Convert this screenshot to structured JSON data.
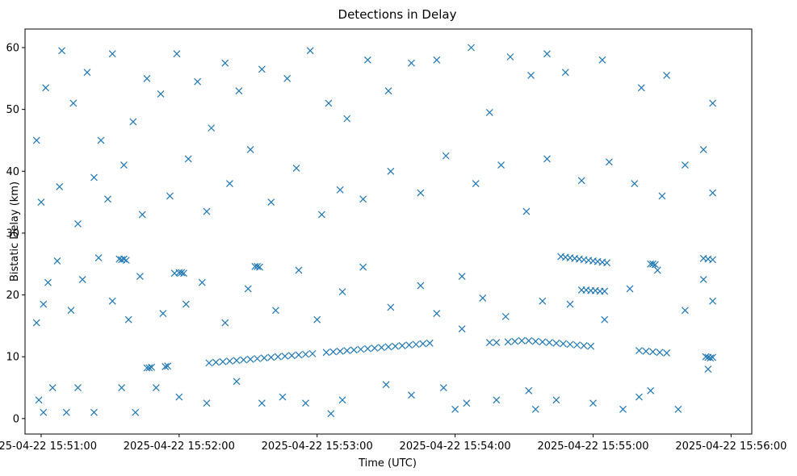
{
  "chart_data": {
    "type": "scatter",
    "title": "Detections in Delay",
    "xlabel": "Time (UTC)",
    "ylabel": "Bistatic Delay (km)",
    "x_ticks": [
      "2025-04-22 15:51:00",
      "2025-04-22 15:52:00",
      "2025-04-22 15:53:00",
      "2025-04-22 15:54:00",
      "2025-04-22 15:55:00",
      "2025-04-22 15:56:00"
    ],
    "y_ticks": [
      0,
      10,
      20,
      30,
      40,
      50,
      60
    ],
    "xlim": [
      "2025-04-22 15:50:53",
      "2025-04-22 15:56:09"
    ],
    "ylim": [
      -2.5,
      63
    ],
    "grid": false,
    "marker": "x",
    "color": "#1f77b4",
    "series": [
      {
        "points": [
          [
            "2025-04-22 15:50:59",
            3.0
          ],
          [
            "2025-04-22 15:51:01",
            1.0
          ],
          [
            "2025-04-22 15:51:05",
            5.0
          ],
          [
            "2025-04-22 15:51:11",
            1.0
          ],
          [
            "2025-04-22 15:51:16",
            5.0
          ],
          [
            "2025-04-22 15:51:23",
            1.0
          ],
          [
            "2025-04-22 15:51:35",
            5.0
          ],
          [
            "2025-04-22 15:51:41",
            1.0
          ],
          [
            "2025-04-22 15:51:50",
            5.0
          ],
          [
            "2025-04-22 15:52:00",
            3.5
          ],
          [
            "2025-04-22 15:52:12",
            2.5
          ],
          [
            "2025-04-22 15:52:25",
            6.0
          ],
          [
            "2025-04-22 15:52:36",
            2.5
          ],
          [
            "2025-04-22 15:52:45",
            3.5
          ],
          [
            "2025-04-22 15:52:55",
            2.5
          ],
          [
            "2025-04-22 15:53:06",
            0.8
          ],
          [
            "2025-04-22 15:53:11",
            3.0
          ],
          [
            "2025-04-22 15:53:30",
            5.5
          ],
          [
            "2025-04-22 15:53:41",
            3.8
          ],
          [
            "2025-04-22 15:53:55",
            5.0
          ],
          [
            "2025-04-22 15:54:00",
            1.5
          ],
          [
            "2025-04-22 15:54:05",
            2.5
          ],
          [
            "2025-04-22 15:54:18",
            3.0
          ],
          [
            "2025-04-22 15:54:32",
            4.5
          ],
          [
            "2025-04-22 15:54:35",
            1.5
          ],
          [
            "2025-04-22 15:54:44",
            3.0
          ],
          [
            "2025-04-22 15:55:00",
            2.5
          ],
          [
            "2025-04-22 15:55:13",
            1.5
          ],
          [
            "2025-04-22 15:55:20",
            3.5
          ],
          [
            "2025-04-22 15:55:25",
            4.5
          ],
          [
            "2025-04-22 15:55:37",
            1.5
          ],
          [
            "2025-04-22 15:55:50",
            8.0
          ],
          [
            "2025-04-22 15:50:58",
            15.5
          ],
          [
            "2025-04-22 15:51:01",
            18.5
          ],
          [
            "2025-04-22 15:51:03",
            22.0
          ],
          [
            "2025-04-22 15:51:07",
            25.5
          ],
          [
            "2025-04-22 15:51:13",
            17.5
          ],
          [
            "2025-04-22 15:51:18",
            22.5
          ],
          [
            "2025-04-22 15:51:25",
            26.0
          ],
          [
            "2025-04-22 15:51:31",
            19.0
          ],
          [
            "2025-04-22 15:51:38",
            16.0
          ],
          [
            "2025-04-22 15:51:43",
            23.0
          ],
          [
            "2025-04-22 15:51:53",
            17.0
          ],
          [
            "2025-04-22 15:51:58",
            23.5
          ],
          [
            "2025-04-22 15:52:03",
            18.5
          ],
          [
            "2025-04-22 15:52:10",
            22.0
          ],
          [
            "2025-04-22 15:52:20",
            15.5
          ],
          [
            "2025-04-22 15:52:30",
            21.0
          ],
          [
            "2025-04-22 15:52:42",
            17.5
          ],
          [
            "2025-04-22 15:52:52",
            24.0
          ],
          [
            "2025-04-22 15:53:00",
            16.0
          ],
          [
            "2025-04-22 15:53:11",
            20.5
          ],
          [
            "2025-04-22 15:53:20",
            24.5
          ],
          [
            "2025-04-22 15:53:32",
            18.0
          ],
          [
            "2025-04-22 15:53:45",
            21.5
          ],
          [
            "2025-04-22 15:53:52",
            17.0
          ],
          [
            "2025-04-22 15:54:03",
            23.0
          ],
          [
            "2025-04-22 15:54:12",
            19.5
          ],
          [
            "2025-04-22 15:54:22",
            16.5
          ],
          [
            "2025-04-22 15:54:38",
            19.0
          ],
          [
            "2025-04-22 15:54:50",
            18.5
          ],
          [
            "2025-04-22 15:55:05",
            16.0
          ],
          [
            "2025-04-22 15:55:16",
            21.0
          ],
          [
            "2025-04-22 15:55:28",
            24.0
          ],
          [
            "2025-04-22 15:55:40",
            17.5
          ],
          [
            "2025-04-22 15:55:48",
            22.5
          ],
          [
            "2025-04-22 15:55:52",
            19.0
          ],
          [
            "2025-04-22 15:50:58",
            45.0
          ],
          [
            "2025-04-22 15:51:02",
            53.5
          ],
          [
            "2025-04-22 15:51:09",
            59.5
          ],
          [
            "2025-04-22 15:51:14",
            51.0
          ],
          [
            "2025-04-22 15:51:20",
            56.0
          ],
          [
            "2025-04-22 15:51:26",
            45.0
          ],
          [
            "2025-04-22 15:51:31",
            59.0
          ],
          [
            "2025-04-22 15:51:40",
            48.0
          ],
          [
            "2025-04-22 15:51:46",
            55.0
          ],
          [
            "2025-04-22 15:51:52",
            52.5
          ],
          [
            "2025-04-22 15:51:59",
            59.0
          ],
          [
            "2025-04-22 15:52:08",
            54.5
          ],
          [
            "2025-04-22 15:52:14",
            47.0
          ],
          [
            "2025-04-22 15:52:20",
            57.5
          ],
          [
            "2025-04-22 15:52:26",
            53.0
          ],
          [
            "2025-04-22 15:52:36",
            56.5
          ],
          [
            "2025-04-22 15:52:47",
            55.0
          ],
          [
            "2025-04-22 15:52:57",
            59.5
          ],
          [
            "2025-04-22 15:53:05",
            51.0
          ],
          [
            "2025-04-22 15:53:13",
            48.5
          ],
          [
            "2025-04-22 15:53:22",
            58.0
          ],
          [
            "2025-04-22 15:53:31",
            53.0
          ],
          [
            "2025-04-22 15:53:41",
            57.5
          ],
          [
            "2025-04-22 15:53:52",
            58.0
          ],
          [
            "2025-04-22 15:54:07",
            60.0
          ],
          [
            "2025-04-22 15:54:15",
            49.5
          ],
          [
            "2025-04-22 15:54:24",
            58.5
          ],
          [
            "2025-04-22 15:54:33",
            55.5
          ],
          [
            "2025-04-22 15:54:40",
            59.0
          ],
          [
            "2025-04-22 15:54:48",
            56.0
          ],
          [
            "2025-04-22 15:55:04",
            58.0
          ],
          [
            "2025-04-22 15:55:21",
            53.5
          ],
          [
            "2025-04-22 15:55:32",
            55.5
          ],
          [
            "2025-04-22 15:55:48",
            43.5
          ],
          [
            "2025-04-22 15:55:52",
            51.0
          ],
          [
            "2025-04-22 15:51:00",
            35.0
          ],
          [
            "2025-04-22 15:51:08",
            37.5
          ],
          [
            "2025-04-22 15:51:16",
            31.5
          ],
          [
            "2025-04-22 15:51:23",
            39.0
          ],
          [
            "2025-04-22 15:51:29",
            35.5
          ],
          [
            "2025-04-22 15:51:36",
            41.0
          ],
          [
            "2025-04-22 15:51:44",
            33.0
          ],
          [
            "2025-04-22 15:51:56",
            36.0
          ],
          [
            "2025-04-22 15:52:04",
            42.0
          ],
          [
            "2025-04-22 15:52:12",
            33.5
          ],
          [
            "2025-04-22 15:52:22",
            38.0
          ],
          [
            "2025-04-22 15:52:31",
            43.5
          ],
          [
            "2025-04-22 15:52:40",
            35.0
          ],
          [
            "2025-04-22 15:52:51",
            40.5
          ],
          [
            "2025-04-22 15:53:02",
            33.0
          ],
          [
            "2025-04-22 15:53:10",
            37.0
          ],
          [
            "2025-04-22 15:53:20",
            35.5
          ],
          [
            "2025-04-22 15:53:32",
            40.0
          ],
          [
            "2025-04-22 15:53:45",
            36.5
          ],
          [
            "2025-04-22 15:53:56",
            42.5
          ],
          [
            "2025-04-22 15:54:09",
            38.0
          ],
          [
            "2025-04-22 15:54:20",
            41.0
          ],
          [
            "2025-04-22 15:54:31",
            33.5
          ],
          [
            "2025-04-22 15:54:40",
            42.0
          ],
          [
            "2025-04-22 15:54:55",
            38.5
          ],
          [
            "2025-04-22 15:55:07",
            41.5
          ],
          [
            "2025-04-22 15:55:18",
            38.0
          ],
          [
            "2025-04-22 15:55:30",
            36.0
          ],
          [
            "2025-04-22 15:55:40",
            41.0
          ],
          [
            "2025-04-22 15:55:52",
            36.5
          ],
          [
            "2025-04-22 15:51:34",
            25.8
          ],
          [
            "2025-04-22 15:51:35",
            25.7
          ],
          [
            "2025-04-22 15:51:36",
            25.8
          ],
          [
            "2025-04-22 15:51:37",
            25.6
          ],
          [
            "2025-04-22 15:52:00",
            23.6
          ],
          [
            "2025-04-22 15:52:01",
            23.6
          ],
          [
            "2025-04-22 15:52:02",
            23.5
          ],
          [
            "2025-04-22 15:52:33",
            24.6
          ],
          [
            "2025-04-22 15:52:34",
            24.6
          ],
          [
            "2025-04-22 15:52:35",
            24.5
          ],
          [
            "2025-04-22 15:54:46",
            26.2
          ],
          [
            "2025-04-22 15:54:48",
            26.1
          ],
          [
            "2025-04-22 15:54:50",
            26.0
          ],
          [
            "2025-04-22 15:54:52",
            25.9
          ],
          [
            "2025-04-22 15:54:54",
            25.8
          ],
          [
            "2025-04-22 15:54:56",
            25.7
          ],
          [
            "2025-04-22 15:54:58",
            25.6
          ],
          [
            "2025-04-22 15:55:00",
            25.5
          ],
          [
            "2025-04-22 15:55:02",
            25.4
          ],
          [
            "2025-04-22 15:55:04",
            25.3
          ],
          [
            "2025-04-22 15:55:06",
            25.2
          ],
          [
            "2025-04-22 15:55:25",
            25.0
          ],
          [
            "2025-04-22 15:55:26",
            25.0
          ],
          [
            "2025-04-22 15:55:27",
            24.9
          ],
          [
            "2025-04-22 15:55:48",
            25.9
          ],
          [
            "2025-04-22 15:55:50",
            25.8
          ],
          [
            "2025-04-22 15:55:52",
            25.7
          ],
          [
            "2025-04-22 15:54:55",
            20.8
          ],
          [
            "2025-04-22 15:54:57",
            20.8
          ],
          [
            "2025-04-22 15:54:59",
            20.7
          ],
          [
            "2025-04-22 15:55:01",
            20.7
          ],
          [
            "2025-04-22 15:55:03",
            20.6
          ],
          [
            "2025-04-22 15:55:05",
            20.6
          ],
          [
            "2025-04-22 15:51:46",
            8.2
          ],
          [
            "2025-04-22 15:51:47",
            8.2
          ],
          [
            "2025-04-22 15:51:48",
            8.3
          ],
          [
            "2025-04-22 15:51:54",
            8.4
          ],
          [
            "2025-04-22 15:51:55",
            8.5
          ],
          [
            "2025-04-22 15:52:13",
            9.0
          ],
          [
            "2025-04-22 15:52:16",
            9.1
          ],
          [
            "2025-04-22 15:52:19",
            9.2
          ],
          [
            "2025-04-22 15:52:22",
            9.3
          ],
          [
            "2025-04-22 15:52:25",
            9.4
          ],
          [
            "2025-04-22 15:52:28",
            9.5
          ],
          [
            "2025-04-22 15:52:31",
            9.6
          ],
          [
            "2025-04-22 15:52:34",
            9.7
          ],
          [
            "2025-04-22 15:52:37",
            9.8
          ],
          [
            "2025-04-22 15:52:40",
            9.9
          ],
          [
            "2025-04-22 15:52:43",
            10.0
          ],
          [
            "2025-04-22 15:52:46",
            10.1
          ],
          [
            "2025-04-22 15:52:49",
            10.2
          ],
          [
            "2025-04-22 15:52:52",
            10.3
          ],
          [
            "2025-04-22 15:52:55",
            10.4
          ],
          [
            "2025-04-22 15:52:58",
            10.5
          ],
          [
            "2025-04-22 15:53:04",
            10.7
          ],
          [
            "2025-04-22 15:53:07",
            10.8
          ],
          [
            "2025-04-22 15:53:10",
            10.9
          ],
          [
            "2025-04-22 15:53:13",
            11.0
          ],
          [
            "2025-04-22 15:53:16",
            11.1
          ],
          [
            "2025-04-22 15:53:19",
            11.2
          ],
          [
            "2025-04-22 15:53:22",
            11.3
          ],
          [
            "2025-04-22 15:53:25",
            11.4
          ],
          [
            "2025-04-22 15:53:28",
            11.5
          ],
          [
            "2025-04-22 15:53:31",
            11.6
          ],
          [
            "2025-04-22 15:53:34",
            11.7
          ],
          [
            "2025-04-22 15:53:37",
            11.8
          ],
          [
            "2025-04-22 15:53:40",
            11.9
          ],
          [
            "2025-04-22 15:53:43",
            12.0
          ],
          [
            "2025-04-22 15:53:46",
            12.1
          ],
          [
            "2025-04-22 15:53:49",
            12.2
          ],
          [
            "2025-04-22 15:54:03",
            14.5
          ],
          [
            "2025-04-22 15:54:15",
            12.3
          ],
          [
            "2025-04-22 15:54:18",
            12.3
          ],
          [
            "2025-04-22 15:54:23",
            12.4
          ],
          [
            "2025-04-22 15:54:26",
            12.5
          ],
          [
            "2025-04-22 15:54:29",
            12.6
          ],
          [
            "2025-04-22 15:54:32",
            12.6
          ],
          [
            "2025-04-22 15:54:35",
            12.5
          ],
          [
            "2025-04-22 15:54:38",
            12.4
          ],
          [
            "2025-04-22 15:54:41",
            12.3
          ],
          [
            "2025-04-22 15:54:44",
            12.2
          ],
          [
            "2025-04-22 15:54:47",
            12.1
          ],
          [
            "2025-04-22 15:54:50",
            12.0
          ],
          [
            "2025-04-22 15:54:53",
            11.9
          ],
          [
            "2025-04-22 15:54:56",
            11.8
          ],
          [
            "2025-04-22 15:54:59",
            11.7
          ],
          [
            "2025-04-22 15:55:20",
            11.0
          ],
          [
            "2025-04-22 15:55:23",
            10.9
          ],
          [
            "2025-04-22 15:55:26",
            10.8
          ],
          [
            "2025-04-22 15:55:29",
            10.7
          ],
          [
            "2025-04-22 15:55:32",
            10.6
          ],
          [
            "2025-04-22 15:55:49",
            10.0
          ],
          [
            "2025-04-22 15:55:50",
            9.9
          ],
          [
            "2025-04-22 15:55:51",
            9.8
          ],
          [
            "2025-04-22 15:55:52",
            9.9
          ]
        ]
      }
    ]
  }
}
